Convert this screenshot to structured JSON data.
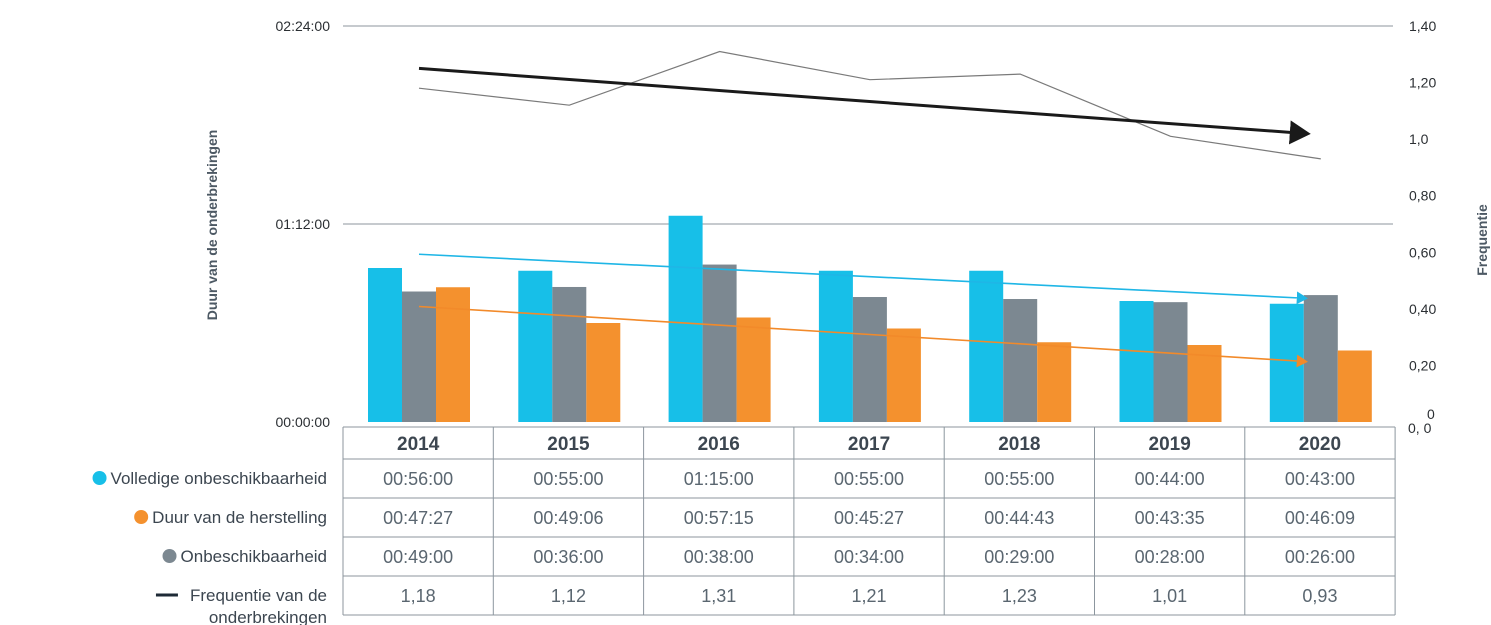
{
  "chart_data": {
    "type": "bar",
    "categories": [
      "2014",
      "2015",
      "2016",
      "2017",
      "2018",
      "2019",
      "2020"
    ],
    "ylabel_left": "Duur van de onderbrekingen",
    "ylabel_right": "Frequentie",
    "left_axis_ticks": [
      "00:00:00",
      "01:12:00",
      "02:24:00"
    ],
    "left_axis_range_minutes": [
      0,
      144
    ],
    "right_axis_ticks": [
      "0, 0",
      "0,20",
      "0,40",
      "0,60",
      "0,80",
      "1,0",
      "1,20",
      "1,40"
    ],
    "right_axis_range": [
      0,
      1.4
    ],
    "series": [
      {
        "name": "Volledige onbeschikbaarheid",
        "kind": "bar",
        "color": "#17bfe8",
        "values_minutes": [
          56,
          55,
          75,
          55,
          55,
          44,
          43
        ],
        "labels": [
          "00:56:00",
          "00:55:00",
          "01:15:00",
          "00:55:00",
          "00:55:00",
          "00:44:00",
          "00:43:00"
        ]
      },
      {
        "name": "Duur van de herstelling",
        "kind": "bar",
        "color": "#7c8891",
        "values_minutes": [
          47.45,
          49.1,
          57.25,
          45.45,
          44.72,
          43.58,
          46.15
        ],
        "labels": [
          "00:47:27",
          "00:49:06",
          "00:57:15",
          "00:45:27",
          "00:44:43",
          "00:43:35",
          "00:46:09"
        ]
      },
      {
        "name": "Onbeschikbaarheid",
        "kind": "bar",
        "color": "#f4912e",
        "values_minutes": [
          49,
          36,
          38,
          34,
          29,
          28,
          26
        ],
        "labels": [
          "00:49:00",
          "00:36:00",
          "00:38:00",
          "00:34:00",
          "00:29:00",
          "00:28:00",
          "00:26:00"
        ]
      },
      {
        "name": "Frequentie van de onderbrekingen",
        "kind": "line",
        "color": "#7a7a7a",
        "values": [
          1.18,
          1.12,
          1.31,
          1.21,
          1.23,
          1.01,
          0.93
        ],
        "labels": [
          "1,18",
          "1,12",
          "1,31",
          "1,21",
          "1,23",
          "1,01",
          "0,93"
        ]
      }
    ],
    "trendlines": [
      {
        "color": "#1a1a1a",
        "axis": "right",
        "start": 1.25,
        "end": 1.02
      },
      {
        "color": "#1fb6e6",
        "axis": "left",
        "start": 61,
        "end": 45
      },
      {
        "color": "#f28a2a",
        "axis": "left",
        "start": 42,
        "end": 22
      }
    ],
    "legend": [
      {
        "label": "Volledige onbeschikbaarheid",
        "marker": "circle",
        "color": "#17bfe8"
      },
      {
        "label": "Duur van de herstelling",
        "marker": "circle",
        "color": "#f4912e"
      },
      {
        "label": "Onbeschikbaarheid",
        "marker": "circle",
        "color": "#7c8891"
      },
      {
        "label": "Frequentie van de onderbrekingen",
        "marker": "line",
        "color": "#1e2a36"
      }
    ],
    "table_rows": [
      [
        "00:56:00",
        "00:55:00",
        "01:15:00",
        "00:55:00",
        "00:55:00",
        "00:44:00",
        "00:43:00"
      ],
      [
        "00:47:27",
        "00:49:06",
        "00:57:15",
        "00:45:27",
        "00:44:43",
        "00:43:35",
        "00:46:09"
      ],
      [
        "00:49:00",
        "00:36:00",
        "00:38:00",
        "00:34:00",
        "00:29:00",
        "00:28:00",
        "00:26:00"
      ],
      [
        "1,18",
        "1,12",
        "1,31",
        "1,21",
        "1,23",
        "1,01",
        "0,93"
      ]
    ],
    "grid": true,
    "legend_position": "left-of-table"
  }
}
